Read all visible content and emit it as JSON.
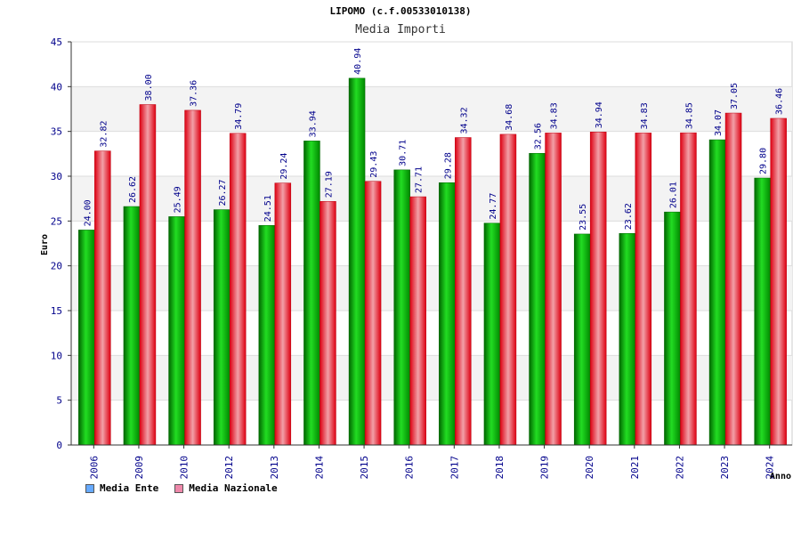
{
  "chart_data": {
    "type": "bar",
    "title": "LIPOMO (c.f.00533010138)",
    "subtitle": "Media Importi",
    "xlabel": "Anno",
    "ylabel": "Euro",
    "ylim": [
      0,
      45
    ],
    "yticks": [
      0,
      5,
      10,
      15,
      20,
      25,
      30,
      35,
      40,
      45
    ],
    "categories": [
      "2006",
      "2009",
      "2010",
      "2012",
      "2013",
      "2014",
      "2015",
      "2016",
      "2017",
      "2018",
      "2019",
      "2020",
      "2021",
      "2022",
      "2023",
      "2024"
    ],
    "series": [
      {
        "name": "Media Ente",
        "color": "#00aa00",
        "values": [
          24.0,
          26.62,
          25.49,
          26.27,
          24.51,
          33.94,
          40.94,
          30.71,
          29.28,
          24.77,
          32.56,
          23.55,
          23.62,
          26.01,
          34.07,
          29.8
        ],
        "labels": [
          "24.00",
          "26.62",
          "25.49",
          "26.27",
          "24.51",
          "33.94",
          "40.94",
          "30.71",
          "29.28",
          "24.77",
          "32.56",
          "23.55",
          "23.62",
          "26.01",
          "34.07",
          "29.80"
        ]
      },
      {
        "name": "Media Nazionale",
        "color": "#ee1122",
        "values": [
          32.82,
          38.0,
          37.36,
          34.79,
          29.24,
          27.19,
          29.43,
          27.71,
          34.32,
          34.68,
          34.83,
          34.94,
          34.83,
          34.85,
          37.05,
          36.46
        ],
        "labels": [
          "32.82",
          "38.00",
          "37.36",
          "34.79",
          "29.24",
          "27.19",
          "29.43",
          "27.71",
          "34.32",
          "34.68",
          "34.83",
          "34.94",
          "34.83",
          "34.85",
          "37.05",
          "36.46"
        ]
      }
    ],
    "legend": [
      {
        "label": "Media Ente",
        "swatch_color": "#66aaff"
      },
      {
        "label": "Media Nazionale",
        "swatch_color": "#ee88aa"
      }
    ],
    "grid": true
  }
}
